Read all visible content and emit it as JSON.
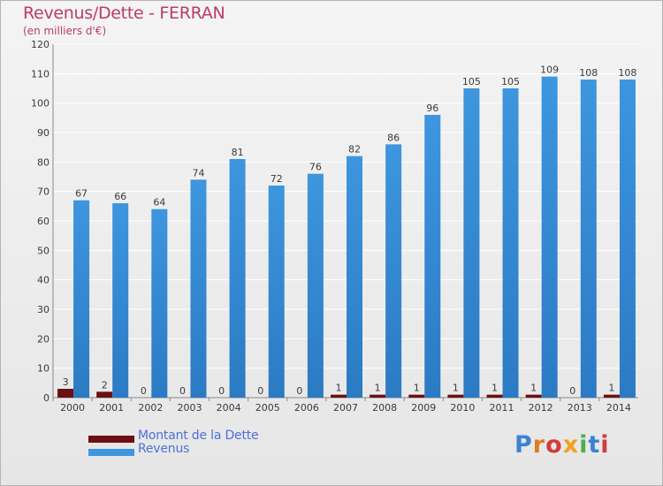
{
  "title": "Revenus/Dette - FERRAN",
  "subtitle": "(en milliers d'€)",
  "colors": {
    "debt": "#6b0f12",
    "revenue": "#3d96de",
    "revenue_dark": "#2b7ac4",
    "label": "#3a3a3a",
    "grid": "#ffffff",
    "title": "#bb3b6a"
  },
  "legend": [
    {
      "label": "Montant de la Dette",
      "color": "#6b0f12"
    },
    {
      "label": "Revenus",
      "color": "#3d96de"
    }
  ],
  "logo": {
    "text": "Proxiti",
    "letter_colors": [
      "#3c82d2",
      "#e07a1e",
      "#d43a3a",
      "#f0a21b",
      "#4caf4c",
      "#3c82d2",
      "#d43a3a"
    ]
  },
  "chart_data": {
    "type": "bar",
    "categories": [
      "2000",
      "2001",
      "2002",
      "2003",
      "2004",
      "2005",
      "2006",
      "2007",
      "2008",
      "2009",
      "2010",
      "2011",
      "2012",
      "2013",
      "2014"
    ],
    "series": [
      {
        "name": "Montant de la Dette",
        "values": [
          3,
          2,
          0,
          0,
          0,
          0,
          0,
          1,
          1,
          1,
          1,
          1,
          1,
          0,
          1
        ]
      },
      {
        "name": "Revenus",
        "values": [
          67,
          66,
          64,
          74,
          81,
          72,
          76,
          82,
          86,
          96,
          105,
          105,
          109,
          108,
          108
        ]
      }
    ],
    "ylim": [
      0,
      120
    ],
    "yticks": [
      0,
      10,
      20,
      30,
      40,
      50,
      60,
      70,
      80,
      90,
      100,
      110,
      120
    ],
    "grid": true,
    "legend_position": "bottom-left"
  }
}
